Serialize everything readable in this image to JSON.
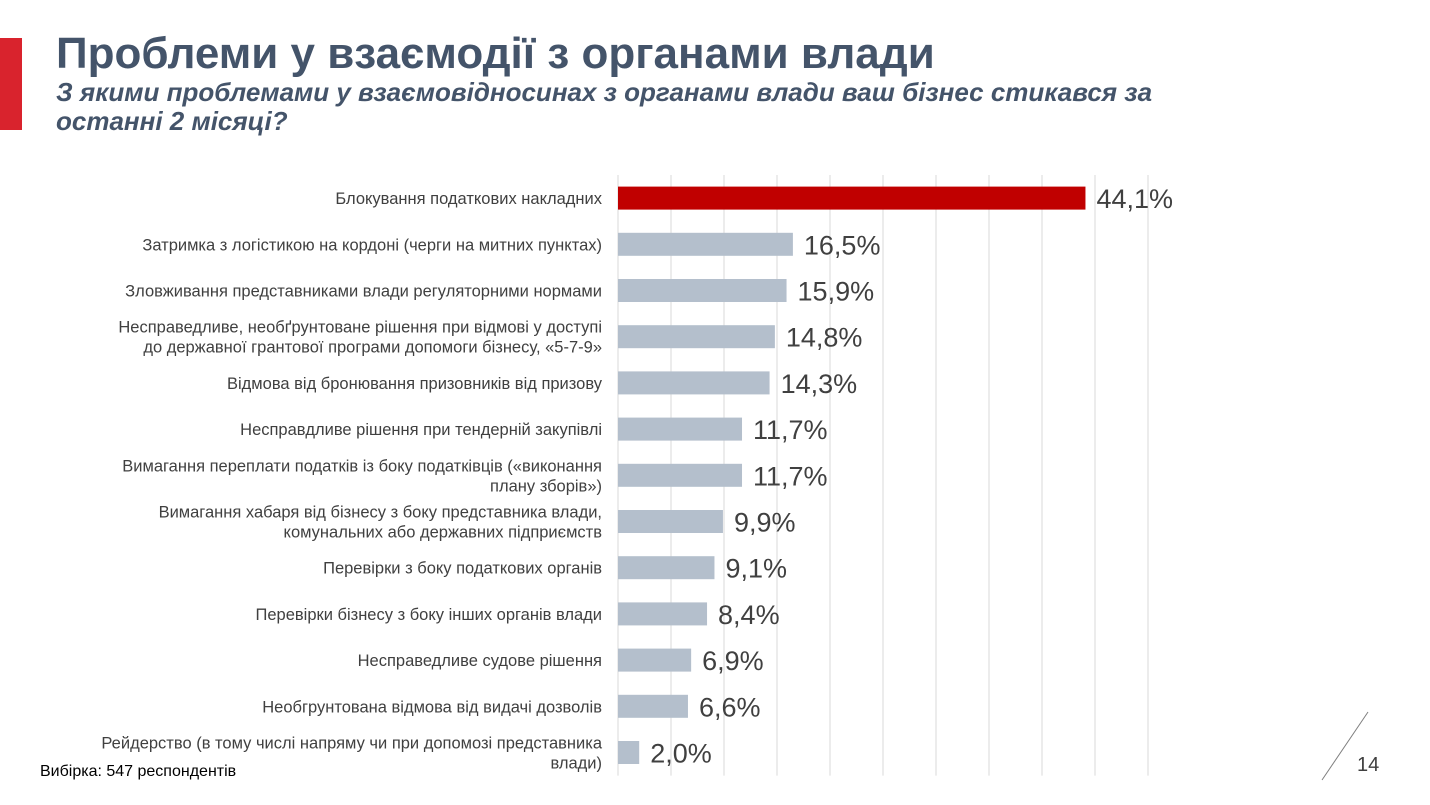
{
  "header": {
    "title": "Проблеми у взаємодії з органами влади",
    "subtitle": "З якими проблемами у взаємовідносинах з органами влади ваш бізнес стикався за останні 2 місяці?"
  },
  "colors": {
    "accent": "#d9232d",
    "title": "#44546a",
    "highlight_bar": "#c00000",
    "bar": "#b4bfcc",
    "grid": "#d9d9d9"
  },
  "chart_data": {
    "type": "bar",
    "orientation": "horizontal",
    "categories": [
      [
        "Блокування податкових накладних"
      ],
      [
        "Затримка з логістикою на кордоні (черги на митних пунктах)"
      ],
      [
        "Зловживання представниками влади регуляторними нормами"
      ],
      [
        "Несправедливе, необґрунтоване рішення при відмові у доступі",
        "до державної грантової програми допомоги бізнесу, «5-7-9»"
      ],
      [
        "Відмова від бронювання призовників від призову"
      ],
      [
        "Несправдливе рішення при тендерній закупівлі"
      ],
      [
        "Вимагання переплати податків із боку податківців («виконання",
        "плану зборів»)"
      ],
      [
        "Вимагання хабаря від бізнесу з боку представника влади,",
        "комунальних або державних підприємств"
      ],
      [
        "Перевірки з боку податкових органів"
      ],
      [
        "Перевірки бізнесу з боку інших органів влади"
      ],
      [
        "Несправедливе судове рішення"
      ],
      [
        "Необгрунтована відмова від видачі дозволів"
      ],
      [
        "Рейдерство (в тому числі напряму чи при допомозі представника",
        "влади)"
      ]
    ],
    "values": [
      44.1,
      16.5,
      15.9,
      14.8,
      14.3,
      11.7,
      11.7,
      9.9,
      9.1,
      8.4,
      6.9,
      6.6,
      2.0
    ],
    "data_labels": [
      "44,1%",
      "16,5%",
      "15,9%",
      "14,8%",
      "14,3%",
      "11,7%",
      "11,7%",
      "9,9%",
      "9,1%",
      "8,4%",
      "6,9%",
      "6,6%",
      "2,0%"
    ],
    "highlight_index": 0,
    "xlim": [
      0,
      50
    ],
    "grid_step": 5,
    "grid": true,
    "legend": "none"
  },
  "footer": {
    "sample_note": "Вибірка: 547 респондентів",
    "page_number": "14"
  }
}
